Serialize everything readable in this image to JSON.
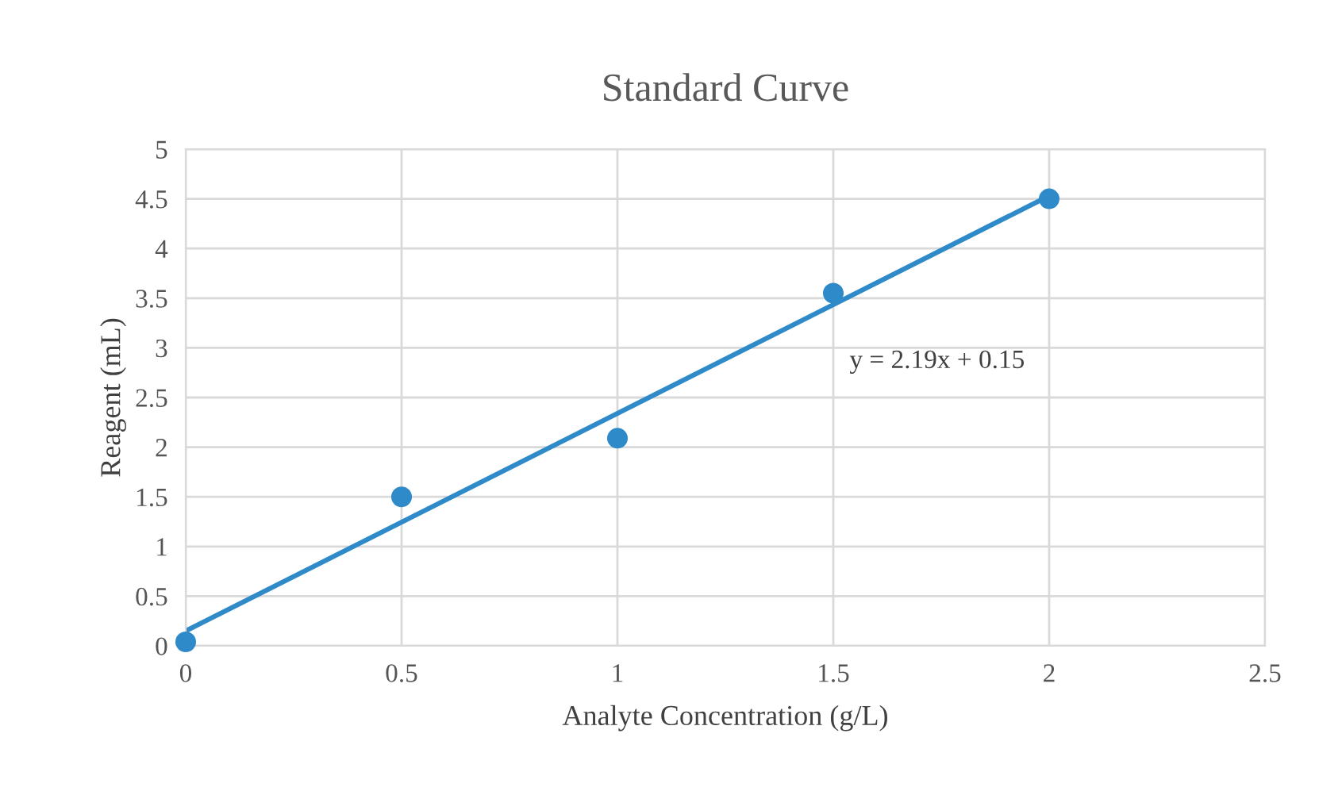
{
  "chart_data": {
    "type": "scatter",
    "title": "Standard Curve",
    "xlabel": "Analyte Concentration (g/L)",
    "ylabel": "Reagent (mL)",
    "series": [
      {
        "color": "#2e8ac8",
        "x": [
          0,
          0.5,
          1,
          1.5,
          2
        ],
        "values": [
          0.04,
          1.5,
          2.09,
          3.55,
          4.5
        ],
        "marker": "circle"
      },
      {
        "type": "line",
        "color": "#2e8ac8",
        "x": [
          0,
          2
        ],
        "values": [
          0.15,
          4.53
        ],
        "marker": "none"
      }
    ],
    "annotations": [
      "y = 2.19x + 0.15"
    ],
    "xlim": [
      0,
      2.5
    ],
    "xticks": [
      0,
      0.5,
      1,
      1.5,
      2,
      2.5
    ],
    "ylim": [
      0,
      5
    ],
    "yticks": [
      0,
      0.5,
      1,
      1.5,
      2,
      2.5,
      3,
      3.5,
      4,
      4.5,
      5
    ],
    "grid": true,
    "legend": false
  }
}
